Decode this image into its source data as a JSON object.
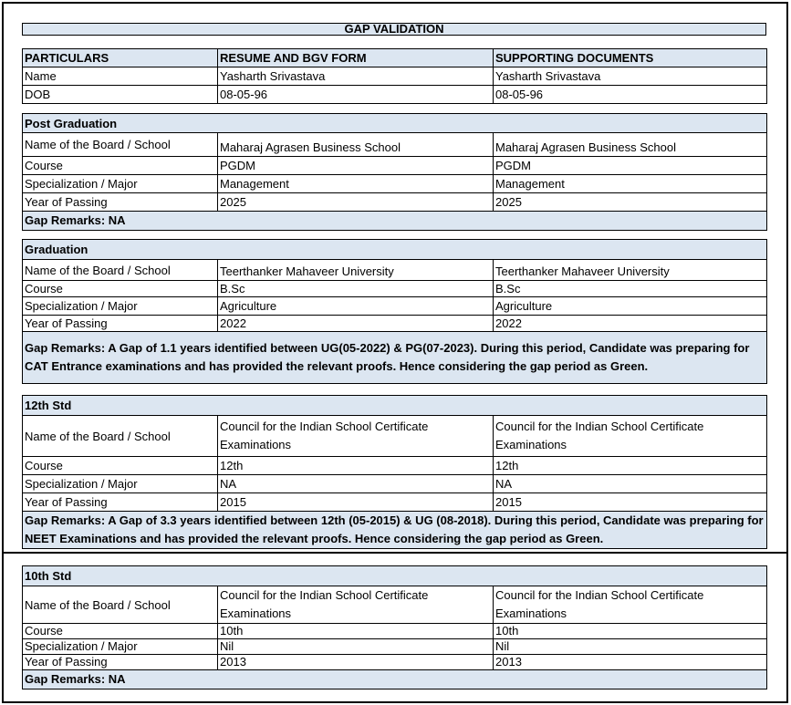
{
  "title": "GAP VALIDATION",
  "header": {
    "columns": [
      "PARTICULARS",
      "RESUME AND BGV FORM",
      "SUPPORTING DOCUMENTS"
    ],
    "rows": [
      {
        "label": "Name",
        "resume": "Yasharth Srivastava",
        "docs": "Yasharth Srivastava"
      },
      {
        "label": "DOB",
        "resume": "08-05-96",
        "docs": "08-05-96"
      }
    ]
  },
  "sections": [
    {
      "heading": "Post Graduation",
      "rows": [
        {
          "label": "Name of the Board / School",
          "resume": "Maharaj Agrasen Business School",
          "docs": "Maharaj Agrasen Business School"
        },
        {
          "label": "Course",
          "resume": "PGDM",
          "docs": "PGDM"
        },
        {
          "label": "Specialization / Major",
          "resume": "Management",
          "docs": "Management"
        },
        {
          "label": "Year of Passing",
          "resume": "2025",
          "docs": "2025"
        }
      ],
      "remarks": "Gap Remarks: NA"
    },
    {
      "heading": "Graduation",
      "rows": [
        {
          "label": "Name of the Board / School",
          "resume": "Teerthanker Mahaveer University",
          "docs": "Teerthanker Mahaveer University"
        },
        {
          "label": "Course",
          "resume": "B.Sc",
          "docs": "B.Sc"
        },
        {
          "label": "Specialization / Major",
          "resume": "Agriculture",
          "docs": "Agriculture"
        },
        {
          "label": "Year of Passing",
          "resume": "2022",
          "docs": "2022"
        }
      ],
      "remarks": "Gap Remarks: A Gap of 1.1 years identified between UG(05-2022) & PG(07-2023). During this period, Candidate was preparing for CAT Entrance examinations and has provided the relevant proofs. Hence considering the gap period as Green."
    },
    {
      "heading": "12th Std",
      "rows": [
        {
          "label": "Name of the Board / School",
          "resume": "Council for the Indian School Certificate Examinations",
          "docs": "Council for the Indian School Certificate Examinations"
        },
        {
          "label": "Course",
          "resume": "12th",
          "docs": "12th"
        },
        {
          "label": "Specialization / Major",
          "resume": "NA",
          "docs": "NA"
        },
        {
          "label": "Year of Passing",
          "resume": "2015",
          "docs": "2015"
        }
      ],
      "remarks": "Gap Remarks: A Gap of 3.3 years identified between 12th (05-2015) & UG (08-2018). During this period, Candidate was preparing for NEET Examinations and has provided the relevant proofs. Hence considering the gap period as Green."
    },
    {
      "heading": "10th Std",
      "rows": [
        {
          "label": "Name of the Board / School",
          "resume": "Council for the Indian School Certificate Examinations",
          "docs": "Council for the Indian School Certificate Examinations"
        },
        {
          "label": "Course",
          "resume": "10th",
          "docs": "10th"
        },
        {
          "label": "Specialization / Major",
          "resume": "Nil",
          "docs": "Nil"
        },
        {
          "label": "Year of Passing",
          "resume": "2013",
          "docs": "2013"
        }
      ],
      "remarks": "Gap Remarks: NA"
    }
  ]
}
